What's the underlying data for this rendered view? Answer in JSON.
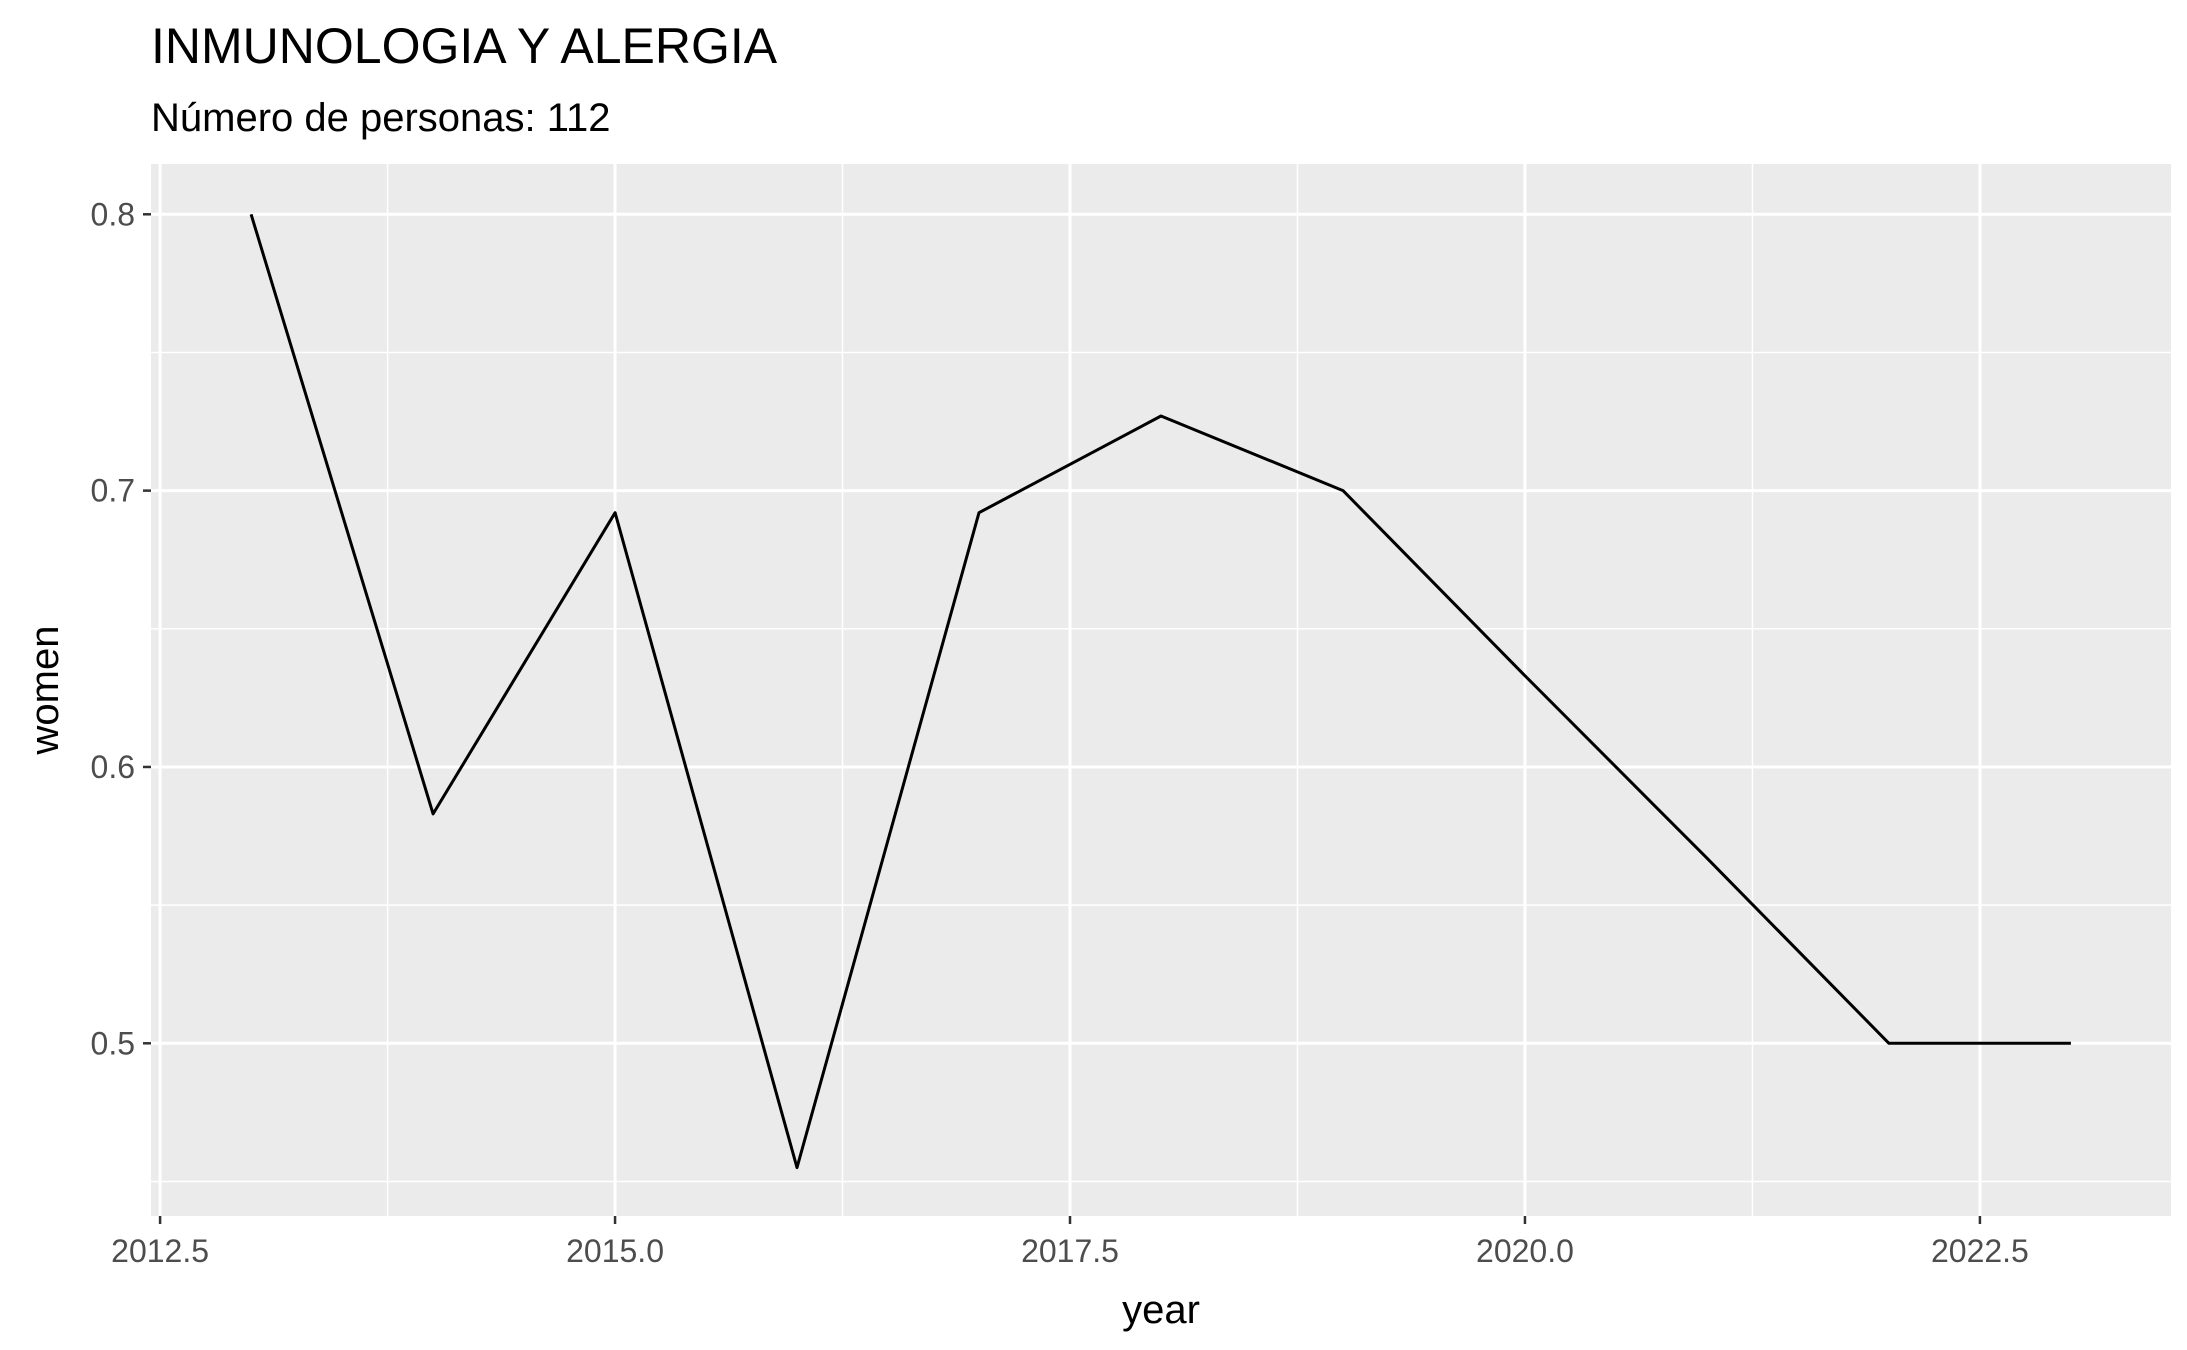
{
  "chart_data": {
    "type": "line",
    "title": "INMUNOLOGIA Y ALERGIA",
    "subtitle": "Número de personas: 112",
    "xlabel": "year",
    "ylabel": "women",
    "xlim": [
      2012.45,
      2023.55
    ],
    "ylim": [
      0.4375,
      0.8182
    ],
    "x_ticks": [
      2012.5,
      2015.0,
      2017.5,
      2020.0,
      2022.5
    ],
    "x_tick_labels": [
      "2012.5",
      "2015.0",
      "2017.5",
      "2020.0",
      "2022.5"
    ],
    "y_ticks": [
      0.5,
      0.6,
      0.7,
      0.8
    ],
    "y_tick_labels": [
      "0.5",
      "0.6",
      "0.7",
      "0.8"
    ],
    "grid": true,
    "background": "#ebebeb",
    "gridline_color": "#ffffff",
    "line_color": "#000000",
    "series": [
      {
        "x": [
          2013,
          2014,
          2015,
          2016,
          2017,
          2018,
          2019,
          2020,
          2021,
          2022,
          2023
        ],
        "values": [
          0.8,
          0.583,
          0.692,
          0.455,
          0.692,
          0.727,
          0.7,
          0.633,
          0.567,
          0.5,
          0.5
        ]
      }
    ]
  }
}
